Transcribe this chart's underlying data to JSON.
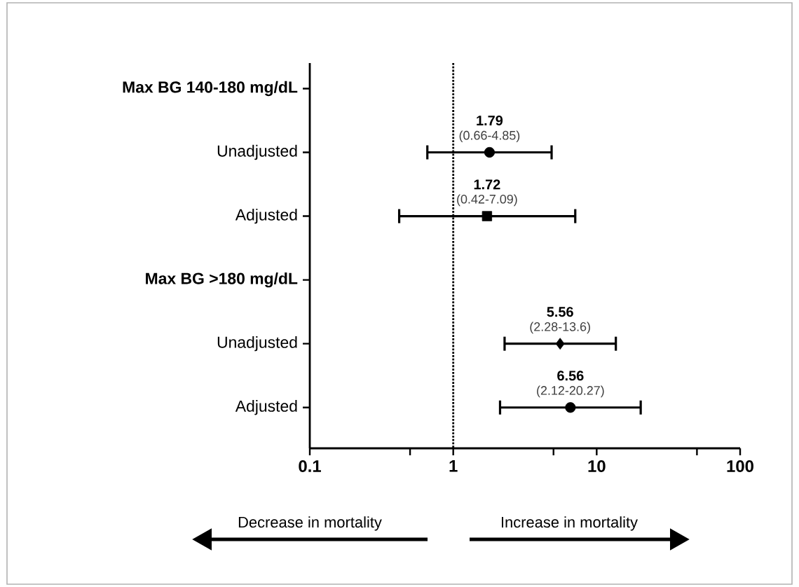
{
  "chart_data": {
    "type": "scatter",
    "orientation": "horizontal",
    "categories": [
      "Max BG 140-180 mg/dL",
      "Unadjusted",
      "Adjusted",
      "Max BG >180 mg/dL",
      "Unadjusted",
      "Adjusted"
    ],
    "series": [
      {
        "color": "#000000",
        "marker": "circle",
        "values": [
          null,
          1.79,
          null,
          null,
          null,
          null
        ],
        "errors": [
          null,
          [
            0.66,
            4.85
          ],
          null,
          null,
          null,
          null
        ],
        "value_labels": [
          null,
          "1.79",
          null,
          null,
          null,
          null
        ]
      },
      {
        "color": "#000000",
        "marker": "square",
        "values": [
          null,
          null,
          1.72,
          null,
          null,
          null
        ],
        "errors": [
          null,
          null,
          [
            0.42,
            7.09
          ],
          null,
          null,
          null
        ],
        "value_labels": [
          null,
          null,
          "1.72",
          null,
          null,
          null
        ]
      },
      {
        "color": "#000000",
        "marker": "diamond",
        "values": [
          null,
          null,
          null,
          null,
          5.56,
          null
        ],
        "errors": [
          null,
          null,
          null,
          null,
          [
            2.28,
            13.6
          ],
          null
        ],
        "value_labels": [
          null,
          null,
          null,
          null,
          "5.56",
          null
        ]
      },
      {
        "color": "#000000",
        "marker": "circle",
        "values": [
          null,
          null,
          null,
          null,
          null,
          6.56
        ],
        "errors": [
          null,
          null,
          null,
          null,
          null,
          [
            2.12,
            20.27
          ]
        ],
        "value_labels": [
          null,
          null,
          null,
          null,
          null,
          "6.56"
        ]
      }
    ],
    "log": "x",
    "xlim": [
      0.1,
      100
    ],
    "xticks": [
      0.1,
      {
        "value": 0.5,
        "label": null
      },
      1,
      {
        "value": 5,
        "label": null
      },
      10,
      {
        "value": 50,
        "label": null
      },
      100
    ],
    "ref_lines": [
      {
        "axis": "x",
        "value": 1,
        "line_style": "dotted",
        "color": "#000000"
      }
    ],
    "annotations": [
      "Decrease in mortality",
      "Increase in mortality",
      "(0.66-4.85)",
      "(0.42-7.09)",
      "(2.28-13.6)",
      "(2.12-20.27)"
    ]
  }
}
